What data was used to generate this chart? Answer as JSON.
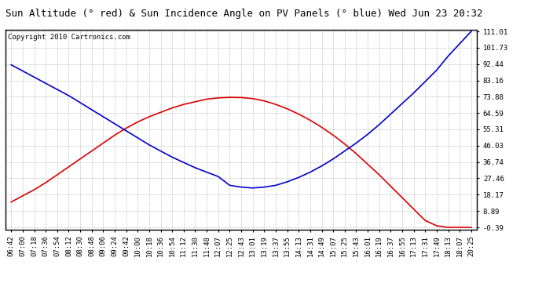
{
  "title": "Sun Altitude (° red) & Sun Incidence Angle on PV Panels (° blue) Wed Jun 23 20:32",
  "copyright": "Copyright 2010 Cartronics.com",
  "background_color": "#ffffff",
  "plot_bg_color": "#ffffff",
  "grid_color": "#aaaaaa",
  "yticks": [
    111.01,
    101.73,
    92.44,
    83.16,
    73.88,
    64.59,
    55.31,
    46.03,
    36.74,
    27.46,
    18.17,
    8.89,
    -0.39
  ],
  "xtick_labels": [
    "06:42",
    "07:00",
    "07:18",
    "07:36",
    "07:54",
    "08:12",
    "08:30",
    "08:48",
    "09:06",
    "09:24",
    "09:42",
    "10:00",
    "10:18",
    "10:36",
    "10:54",
    "11:12",
    "11:30",
    "11:48",
    "12:07",
    "12:25",
    "12:43",
    "13:01",
    "13:19",
    "13:37",
    "13:55",
    "14:13",
    "14:31",
    "14:49",
    "15:07",
    "15:25",
    "15:43",
    "16:01",
    "16:19",
    "16:37",
    "16:55",
    "17:13",
    "17:31",
    "17:49",
    "18:13",
    "18:07",
    "20:25"
  ],
  "red_data": [
    14.0,
    17.5,
    21.0,
    25.0,
    29.5,
    34.0,
    38.5,
    43.0,
    47.5,
    52.0,
    56.0,
    59.5,
    62.5,
    65.0,
    67.5,
    69.5,
    71.0,
    72.5,
    73.2,
    73.5,
    73.4,
    72.8,
    71.5,
    69.5,
    67.0,
    64.0,
    60.5,
    56.5,
    52.0,
    47.0,
    41.5,
    35.5,
    29.5,
    23.0,
    16.5,
    10.0,
    3.5,
    0.5,
    -0.39,
    -0.39,
    -0.39
  ],
  "blue_data": [
    92.0,
    88.5,
    85.0,
    81.5,
    78.0,
    74.5,
    70.5,
    66.5,
    62.5,
    58.5,
    54.5,
    50.5,
    46.5,
    43.0,
    39.5,
    36.5,
    33.5,
    31.0,
    28.5,
    23.5,
    22.5,
    22.0,
    22.5,
    23.5,
    25.5,
    28.0,
    31.0,
    34.5,
    38.5,
    43.0,
    47.5,
    52.5,
    58.0,
    64.0,
    70.0,
    76.0,
    82.5,
    89.0,
    97.0,
    104.0,
    111.01
  ],
  "red_color": "#dd0000",
  "blue_color": "#0000cc",
  "line_width": 1.2,
  "title_fontsize": 9,
  "tick_fontsize": 6.5,
  "copyright_fontsize": 6.5
}
